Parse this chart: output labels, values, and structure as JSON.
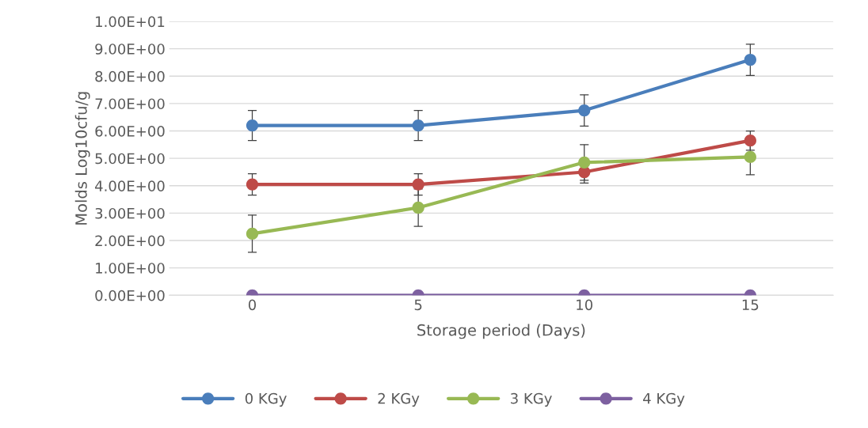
{
  "chart_data": {
    "type": "line",
    "xlabel": "Storage period (Days)",
    "ylabel": "Molds Log10cfu/g",
    "categories": [
      "0",
      "5",
      "10",
      "15"
    ],
    "series": [
      {
        "name": "0 KGy",
        "color": "#4a7ebb",
        "values": [
          6.2,
          6.2,
          6.75,
          8.6
        ],
        "errors": [
          0.55,
          0.55,
          0.57,
          0.57
        ]
      },
      {
        "name": "2 KGy",
        "color": "#be4b48",
        "values": [
          4.05,
          4.05,
          4.5,
          5.65
        ],
        "errors": [
          0.39,
          0.39,
          0.4,
          0.35
        ]
      },
      {
        "name": "3 KGy",
        "color": "#98b954",
        "values": [
          2.25,
          3.2,
          4.85,
          5.05
        ],
        "errors": [
          0.68,
          0.68,
          0.65,
          0.65
        ]
      },
      {
        "name": "4 KGy",
        "color": "#7d60a0",
        "values": [
          0,
          0,
          0,
          0
        ]
      }
    ],
    "ylim": [
      0,
      10
    ],
    "yticks": [
      {
        "value": 0,
        "label": "0.00E+00"
      },
      {
        "value": 1,
        "label": "1.00E+00"
      },
      {
        "value": 2,
        "label": "2.00E+00"
      },
      {
        "value": 3,
        "label": "3.00E+00"
      },
      {
        "value": 4,
        "label": "4.00E+00"
      },
      {
        "value": 5,
        "label": "5.00E+00"
      },
      {
        "value": 6,
        "label": "6.00E+00"
      },
      {
        "value": 7,
        "label": "7.00E+00"
      },
      {
        "value": 8,
        "label": "8.00E+00"
      },
      {
        "value": 9,
        "label": "9.00E+00"
      },
      {
        "value": 10,
        "label": "1.00E+01"
      }
    ],
    "grid": "y",
    "legend": "bottom",
    "marker": "circle",
    "line_style": "solid"
  }
}
